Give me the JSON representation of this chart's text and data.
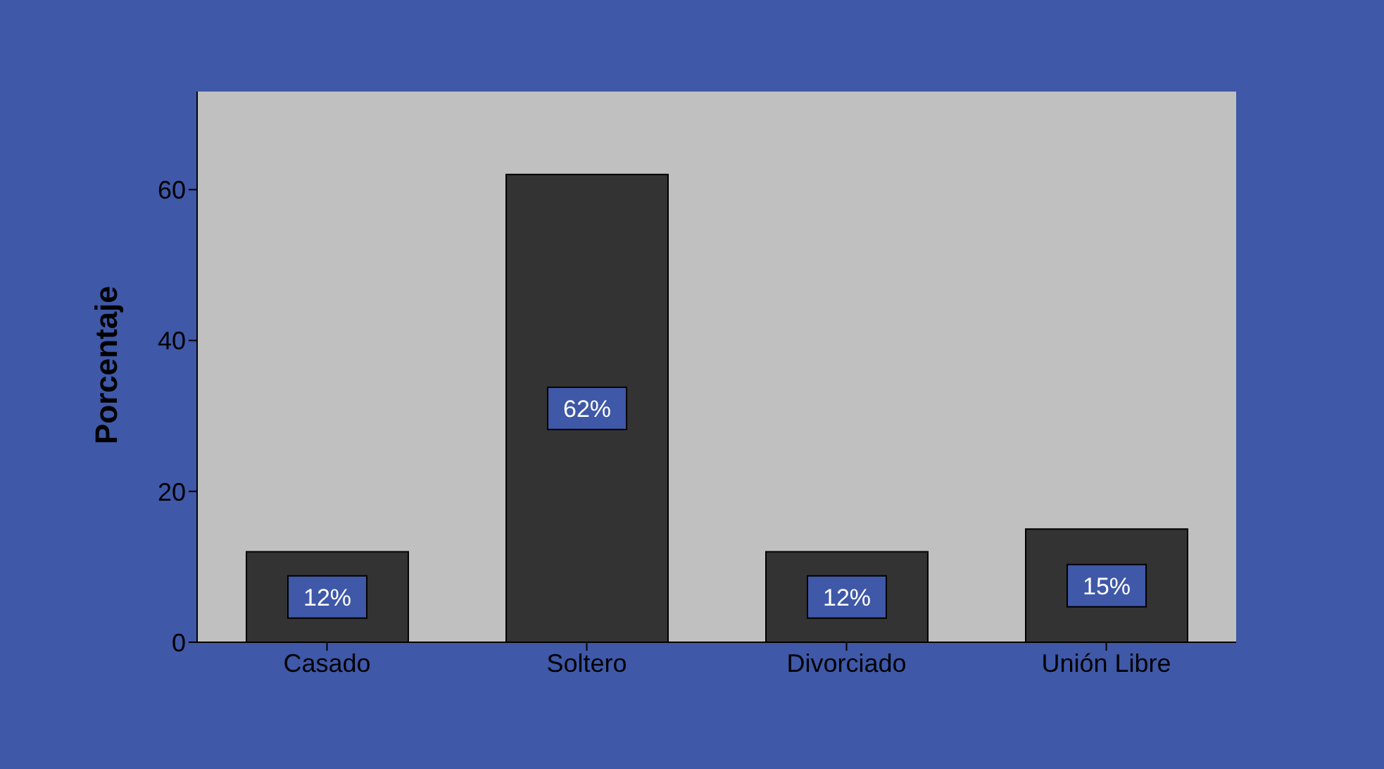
{
  "chart_data": {
    "type": "bar",
    "ylabel": "Porcentaje",
    "categories": [
      "Casado",
      "Soltero",
      "Divorciado",
      "Unión Libre"
    ],
    "values": [
      12,
      62,
      12,
      15
    ],
    "value_labels": [
      "12%",
      "62%",
      "12%",
      "15%"
    ],
    "color": "#333333",
    "ylim": [
      0,
      73
    ],
    "yticks": [
      0,
      20,
      40,
      60
    ]
  }
}
